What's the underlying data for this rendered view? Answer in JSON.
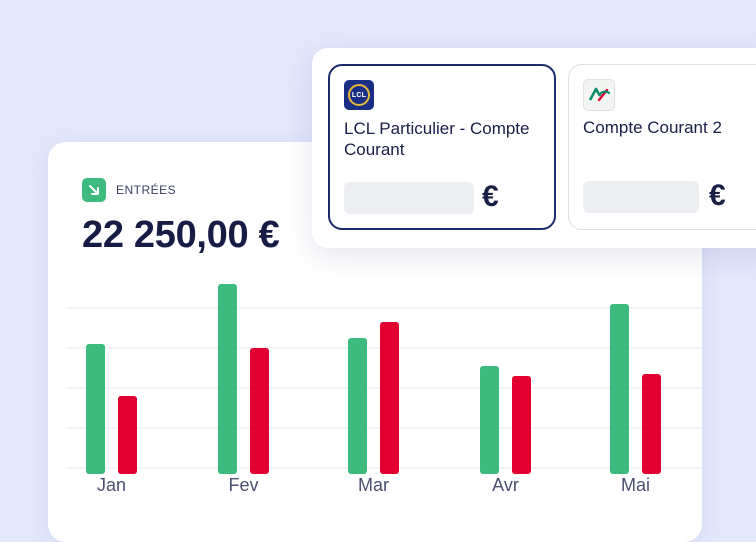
{
  "entrees": {
    "label": "ENTRÉES",
    "total": "22 250,00 €"
  },
  "colors": {
    "income": "#3dba7d",
    "expense": "#e1002f",
    "background": "#e4e8fb",
    "selected_border": "#1d2a6c"
  },
  "chart_data": {
    "type": "bar",
    "categories": [
      "Jan",
      "Fev",
      "Mar",
      "Avr",
      "Mai"
    ],
    "series": [
      {
        "values": [
          62,
          92,
          65,
          51,
          82
        ]
      },
      {
        "values": [
          36,
          60,
          73,
          46,
          47
        ]
      }
    ],
    "ylim": [
      0,
      100
    ],
    "grid": true
  },
  "accounts": [
    {
      "name": "LCL Particulier - Compte Courant",
      "logo": "lcl-logo-icon",
      "logo_text": "LCL",
      "currency": "€",
      "selected": true
    },
    {
      "name": "Compte Courant 2",
      "logo": "credit-agricole-logo-icon",
      "currency": "€",
      "selected": false
    }
  ]
}
